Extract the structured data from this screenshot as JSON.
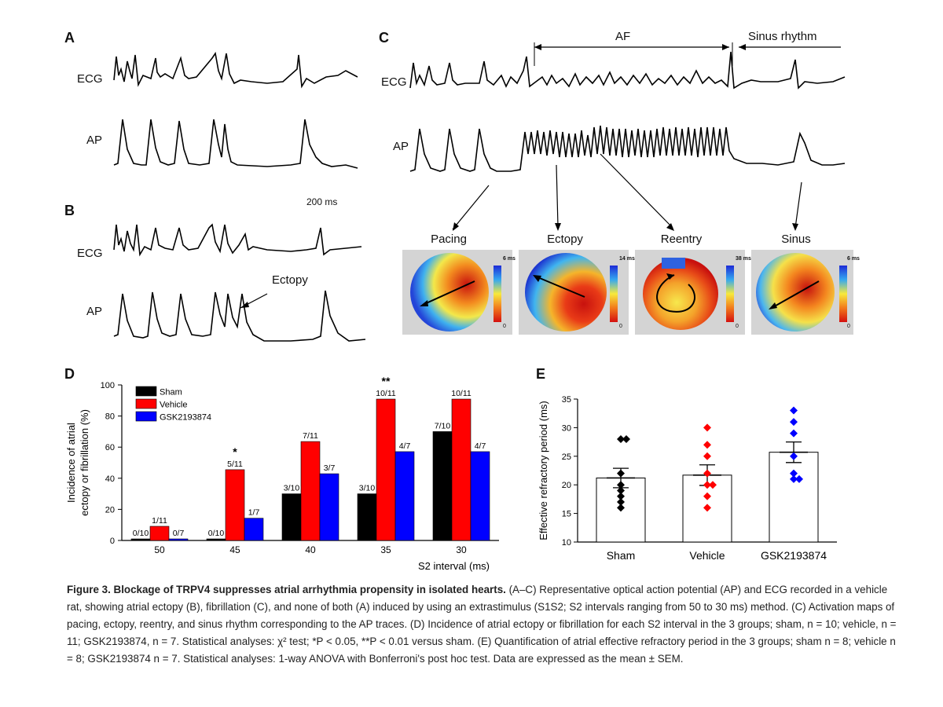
{
  "panels": {
    "a": {
      "letter": "A",
      "ecg": "ECG",
      "ap": "AP",
      "scale": "200 ms"
    },
    "b": {
      "letter": "B",
      "ecg": "ECG",
      "ap": "AP",
      "annotation": "Ectopy"
    },
    "c": {
      "letter": "C",
      "ecg": "ECG",
      "ap": "AP",
      "af": "AF",
      "sinus_rhythm": "Sinus rhythm",
      "maps": [
        {
          "title": "Pacing",
          "max": "6 ms",
          "min": "0"
        },
        {
          "title": "Ectopy",
          "max": "14 ms",
          "min": "0"
        },
        {
          "title": "Reentry",
          "max": "38 ms",
          "min": "0"
        },
        {
          "title": "Sinus",
          "max": "6 ms",
          "min": "0"
        }
      ]
    },
    "d": {
      "letter": "D"
    },
    "e": {
      "letter": "E"
    }
  },
  "colors": {
    "sham": "#000000",
    "vehicle": "#ff0000",
    "gsk": "#0000ff"
  },
  "chart_data": [
    {
      "type": "bar",
      "panel": "D",
      "categories": [
        "50",
        "45",
        "40",
        "35",
        "30"
      ],
      "series": [
        {
          "name": "Sham",
          "values": [
            0,
            0,
            30,
            30,
            70
          ],
          "labels": [
            "0/10",
            "0/10",
            "3/10",
            "3/10",
            "7/10"
          ]
        },
        {
          "name": "Vehicle",
          "values": [
            9.1,
            45.5,
            63.6,
            90.9,
            90.9
          ],
          "labels": [
            "1/11",
            "5/11",
            "7/11",
            "10/11",
            "10/11"
          ]
        },
        {
          "name": "GSK2193874",
          "values": [
            0,
            14.3,
            42.9,
            57.1,
            57.1
          ],
          "labels": [
            "0/7",
            "1/7",
            "3/7",
            "4/7",
            "4/7"
          ]
        }
      ],
      "significance": [
        "",
        "*",
        "",
        "**",
        ""
      ],
      "xlabel": "S2 interval (ms)",
      "ylabel": "Incidence of atrial ectopy or fibrillation (%)",
      "ylim": [
        0,
        100
      ],
      "yticks": [
        0,
        20,
        40,
        60,
        80,
        100
      ],
      "legend_position": "top-left"
    },
    {
      "type": "bar",
      "panel": "E",
      "categories": [
        "Sham",
        "Vehicle",
        "GSK2193874"
      ],
      "values": [
        21.2,
        21.7,
        25.7
      ],
      "sem": [
        1.7,
        1.8,
        1.8
      ],
      "points": [
        [
          28,
          28,
          22,
          20,
          19,
          18,
          17,
          16
        ],
        [
          30,
          27,
          25,
          22,
          20,
          20,
          18,
          16
        ],
        [
          33,
          31,
          29,
          25,
          22,
          21,
          21
        ]
      ],
      "ylabel": "Effective refractory period (ms)",
      "ylim": [
        10,
        35
      ],
      "yticks": [
        10,
        15,
        20,
        25,
        30,
        35
      ]
    }
  ],
  "caption": {
    "title": "Figure 3. Blockage of TRPV4 suppresses atrial arrhythmia propensity in isolated hearts.",
    "body": "(A–C) Representative optical action potential (AP) and ECG recorded in a vehicle rat, showing atrial ectopy (B), fibrillation (C), and none of both (A) induced by using an extrastimulus (S1S2; S2 intervals ranging from 50 to 30 ms) method. (C) Activation maps of pacing, ectopy, reentry, and sinus rhythm corresponding to the AP traces. (D) Incidence of atrial ectopy or fibrillation for each S2 interval in the 3 groups; sham, n = 10; vehicle, n = 11; GSK2193874, n = 7. Statistical analyses: χ² test; *P < 0.05, **P < 0.01 versus sham. (E) Quantification of atrial effective refractory period in the 3 groups; sham n = 8; vehicle n = 8; GSK2193874 n = 7. Statistical analyses: 1-way ANOVA with Bonferroni's post hoc test. Data are expressed as the mean ± SEM."
  }
}
